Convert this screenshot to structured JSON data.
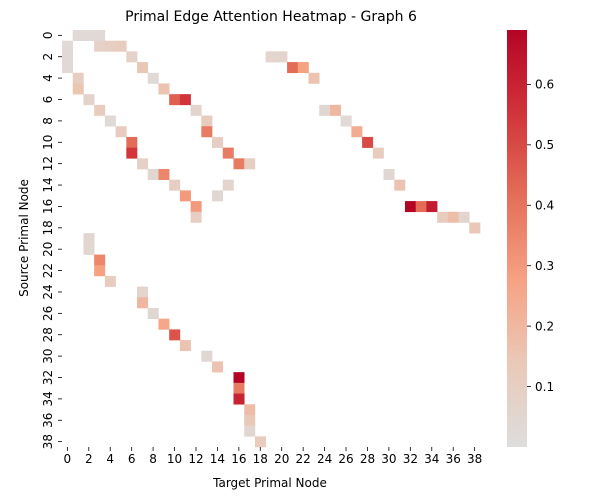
{
  "chart_data": {
    "type": "heatmap",
    "title": "Primal Edge Attention Heatmap - Graph 6",
    "xlabel": "Target Primal Node",
    "ylabel": "Source Primal Node",
    "n_rows": 39,
    "n_cols": 39,
    "x_tick_labels": [
      "0",
      "2",
      "4",
      "6",
      "8",
      "10",
      "12",
      "14",
      "16",
      "18",
      "20",
      "22",
      "24",
      "26",
      "28",
      "30",
      "32",
      "34",
      "36",
      "38"
    ],
    "y_tick_labels": [
      "0",
      "2",
      "4",
      "6",
      "8",
      "10",
      "12",
      "14",
      "16",
      "18",
      "20",
      "22",
      "24",
      "26",
      "28",
      "30",
      "32",
      "34",
      "36",
      "38"
    ],
    "colorbar": {
      "min": 0.0,
      "max": 0.69,
      "ticks": [
        0.1,
        0.2,
        0.3,
        0.4,
        0.5,
        0.6
      ],
      "tick_labels": [
        "0.1",
        "0.2",
        "0.3",
        "0.4",
        "0.5",
        "0.6"
      ],
      "colormap": "coolwarm"
    },
    "cells": [
      [
        0,
        1,
        0.03
      ],
      [
        0,
        2,
        0.03
      ],
      [
        0,
        3,
        0.03
      ],
      [
        1,
        0,
        0.03
      ],
      [
        1,
        3,
        0.08
      ],
      [
        1,
        4,
        0.1
      ],
      [
        1,
        5,
        0.12
      ],
      [
        2,
        0,
        0.03
      ],
      [
        2,
        6,
        0.08
      ],
      [
        2,
        19,
        0.06
      ],
      [
        2,
        20,
        0.06
      ],
      [
        3,
        0,
        0.03
      ],
      [
        3,
        7,
        0.14
      ],
      [
        3,
        21,
        0.42
      ],
      [
        3,
        22,
        0.28
      ],
      [
        4,
        1,
        0.1
      ],
      [
        4,
        8,
        0.03
      ],
      [
        4,
        23,
        0.16
      ],
      [
        5,
        1,
        0.15
      ],
      [
        5,
        9,
        0.16
      ],
      [
        6,
        2,
        0.07
      ],
      [
        6,
        10,
        0.45
      ],
      [
        6,
        11,
        0.55
      ],
      [
        7,
        3,
        0.12
      ],
      [
        7,
        12,
        0.06
      ],
      [
        7,
        24,
        0.05
      ],
      [
        7,
        25,
        0.2
      ],
      [
        8,
        4,
        0.03
      ],
      [
        8,
        13,
        0.12
      ],
      [
        8,
        26,
        0.03
      ],
      [
        9,
        5,
        0.12
      ],
      [
        9,
        13,
        0.38
      ],
      [
        9,
        27,
        0.24
      ],
      [
        10,
        6,
        0.42
      ],
      [
        10,
        14,
        0.1
      ],
      [
        10,
        28,
        0.5
      ],
      [
        11,
        6,
        0.55
      ],
      [
        11,
        15,
        0.38
      ],
      [
        11,
        29,
        0.12
      ],
      [
        12,
        7,
        0.08
      ],
      [
        12,
        16,
        0.38
      ],
      [
        12,
        17,
        0.1
      ],
      [
        13,
        8,
        0.05
      ],
      [
        13,
        9,
        0.35
      ],
      [
        13,
        30,
        0.04
      ],
      [
        14,
        10,
        0.1
      ],
      [
        14,
        15,
        0.06
      ],
      [
        14,
        31,
        0.16
      ],
      [
        15,
        11,
        0.3
      ],
      [
        15,
        14,
        0.04
      ],
      [
        16,
        12,
        0.3
      ],
      [
        16,
        32,
        0.69
      ],
      [
        16,
        33,
        0.42
      ],
      [
        16,
        34,
        0.62
      ],
      [
        17,
        12,
        0.1
      ],
      [
        17,
        35,
        0.12
      ],
      [
        17,
        36,
        0.18
      ],
      [
        17,
        37,
        0.06
      ],
      [
        18,
        38,
        0.14
      ],
      [
        19,
        2,
        0.05
      ],
      [
        20,
        2,
        0.05
      ],
      [
        21,
        3,
        0.35
      ],
      [
        22,
        3,
        0.28
      ],
      [
        23,
        4,
        0.12
      ],
      [
        24,
        7,
        0.06
      ],
      [
        25,
        7,
        0.2
      ],
      [
        26,
        8,
        0.04
      ],
      [
        27,
        9,
        0.26
      ],
      [
        28,
        10,
        0.48
      ],
      [
        29,
        11,
        0.16
      ],
      [
        30,
        13,
        0.04
      ],
      [
        31,
        14,
        0.16
      ],
      [
        32,
        16,
        0.69
      ],
      [
        33,
        16,
        0.38
      ],
      [
        34,
        16,
        0.6
      ],
      [
        35,
        17,
        0.18
      ],
      [
        36,
        17,
        0.14
      ],
      [
        37,
        17,
        0.05
      ],
      [
        38,
        18,
        0.12
      ]
    ]
  }
}
